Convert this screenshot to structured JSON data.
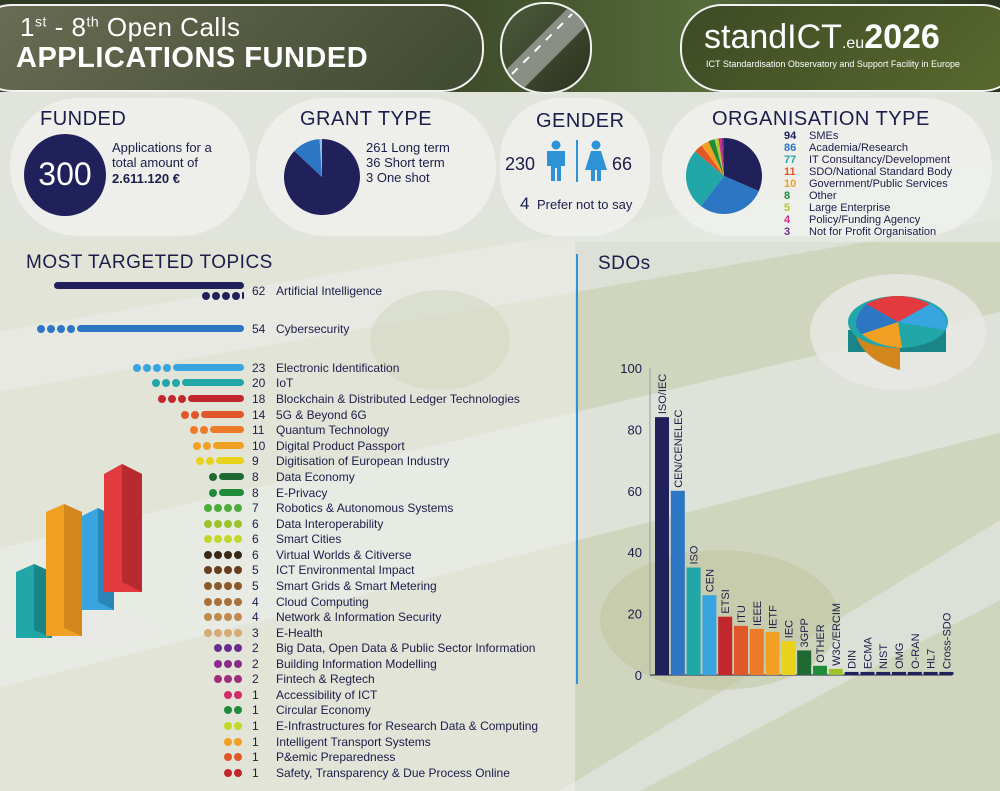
{
  "header": {
    "title_prefix": "1",
    "title_sup1": "st",
    "title_mid": " - 8",
    "title_sup2": "th",
    "title_suffix": " Open Calls",
    "title_main": "APPLICATIONS FUNDED",
    "logo_text": "standICT",
    "logo_eu": ".eu",
    "logo_year": "2026",
    "logo_sub": "ICT Standardisation Observatory and Support Facility in Europe"
  },
  "funded": {
    "title": "FUNDED",
    "count": "300",
    "line1": "Applications for a",
    "line2": "total amount of",
    "amount": "2.611.120  €"
  },
  "grant": {
    "title": "GRANT TYPE",
    "items": [
      "261 Long term",
      "36 Short term",
      "3 One shot"
    ],
    "values": [
      261,
      36,
      3
    ],
    "colors": [
      "#20215a",
      "#2d76c4",
      "#8fc1e6"
    ]
  },
  "gender": {
    "title": "GENDER",
    "male": "230",
    "female": "66",
    "other_num": "4",
    "other_label": "Prefer not to say",
    "icon_color": "#2d93d6"
  },
  "org": {
    "title": "ORGANISATION TYPE",
    "items": [
      {
        "n": "94",
        "label": "SMEs",
        "color": "#20215a"
      },
      {
        "n": "86",
        "label": "Academia/Research",
        "color": "#2d76c4"
      },
      {
        "n": "77",
        "label": "IT Consultancy/Development",
        "color": "#22a7a8"
      },
      {
        "n": "11",
        "label": "SDO/National Standard Body",
        "color": "#e0572a"
      },
      {
        "n": "10",
        "label": "Government/Public Services",
        "color": "#f2a024"
      },
      {
        "n": "8",
        "label": "Other",
        "color": "#1e8c3a"
      },
      {
        "n": "5",
        "label": "Large Enterprise",
        "color": "#b3cc2a"
      },
      {
        "n": "4",
        "label": "Policy/Funding Agency",
        "color": "#d42a8a"
      },
      {
        "n": "3",
        "label": "Not for Profit Organisation",
        "color": "#6a2d8f"
      }
    ]
  },
  "topics": {
    "title": "MOST TARGETED TOPICS",
    "items": [
      {
        "n": "62",
        "label": "Artificial Intelligence",
        "color": "#20215a"
      },
      {
        "n": "54",
        "label": "Cybersecurity",
        "color": "#2d76c4"
      },
      {
        "n": "23",
        "label": "Electronic Identification",
        "color": "#38a5e0"
      },
      {
        "n": "20",
        "label": "IoT",
        "color": "#22a7a8"
      },
      {
        "n": "18",
        "label": "Blockchain & Distributed Ledger Technologies",
        "color": "#c2272d"
      },
      {
        "n": "14",
        "label": "5G & Beyond 6G",
        "color": "#e0572a"
      },
      {
        "n": "11",
        "label": "Quantum Technology",
        "color": "#ec7a26"
      },
      {
        "n": "10",
        "label": "Digital Product Passport",
        "color": "#f2a024"
      },
      {
        "n": "9",
        "label": "Digitisation of European Industry",
        "color": "#e8d21c"
      },
      {
        "n": "8",
        "label": "Data Economy",
        "color": "#1e6a32"
      },
      {
        "n": "8",
        "label": "E-Privacy",
        "color": "#1e8c3a"
      },
      {
        "n": "7",
        "label": "Robotics & Autonomous Systems",
        "color": "#4cad3a"
      },
      {
        "n": "6",
        "label": "Data Interoperability",
        "color": "#9cc22c"
      },
      {
        "n": "6",
        "label": "Smart Cities",
        "color": "#c4d62a"
      },
      {
        "n": "6",
        "label": "Virtual Worlds & Citiverse",
        "color": "#3b2a18"
      },
      {
        "n": "5",
        "label": "ICT Environmental Impact",
        "color": "#6a3d1e"
      },
      {
        "n": "5",
        "label": "Smart Grids & Smart Metering",
        "color": "#8a5a2a"
      },
      {
        "n": "4",
        "label": "Cloud Computing",
        "color": "#a8703a"
      },
      {
        "n": "4",
        "label": "Network & Information Security",
        "color": "#c08a4e"
      },
      {
        "n": "3",
        "label": "E-Health",
        "color": "#d6aa74"
      },
      {
        "n": "2",
        "label": "Big Data, Open Data & Public Sector Information",
        "color": "#6a2d8f"
      },
      {
        "n": "2",
        "label": "Building Information Modelling",
        "color": "#8a2d8a"
      },
      {
        "n": "2",
        "label": "Fintech & Regtech",
        "color": "#a02d7a"
      },
      {
        "n": "1",
        "label": "Accessibility of ICT",
        "color": "#d42a6a"
      },
      {
        "n": "1",
        "label": "Circular Economy",
        "color": "#1e8c3a"
      },
      {
        "n": "1",
        "label": "E-Infrastructures for Research Data & Computing",
        "color": "#c4d62a"
      },
      {
        "n": "1",
        "label": "Intelligent Transport Systems",
        "color": "#f2a024"
      },
      {
        "n": "1",
        "label": "P&emic Preparedness",
        "color": "#e0572a"
      },
      {
        "n": "1",
        "label": "Safety, Transparency & Due Process Online",
        "color": "#c2272d"
      }
    ]
  },
  "sdos": {
    "title": "SDOs"
  },
  "chart_data": {
    "type": "bar",
    "title": "SDOs",
    "xlabel": "",
    "ylabel": "",
    "ylim": [
      0,
      100
    ],
    "yticks": [
      "0",
      "20",
      "40",
      "60",
      "80",
      "100"
    ],
    "grid": false,
    "categories": [
      "ISO/IEC",
      "CEN/CENELEC",
      "ISO",
      "CEN",
      "ETSI",
      "ITU",
      "IEEE",
      "IETF",
      "IEC",
      "3GPP",
      "OTHER",
      "W3C/ERCIM",
      "DIN",
      "ECMA",
      "NIST",
      "OMG",
      "O-RAN",
      "HL7",
      "Cross-SDO"
    ],
    "values": [
      84,
      60,
      35,
      26,
      19,
      16,
      15,
      14,
      11,
      8,
      3,
      2,
      1,
      1,
      1,
      1,
      1,
      1,
      1
    ],
    "colors": [
      "#20215a",
      "#2d76c4",
      "#22a7a8",
      "#38a5e0",
      "#c2272d",
      "#e0572a",
      "#ec7a26",
      "#f2a024",
      "#e8d21c",
      "#1e6a32",
      "#1e8c3a",
      "#9cc22c",
      "#20215a",
      "#20215a",
      "#20215a",
      "#20215a",
      "#20215a",
      "#20215a",
      "#20215a"
    ]
  }
}
